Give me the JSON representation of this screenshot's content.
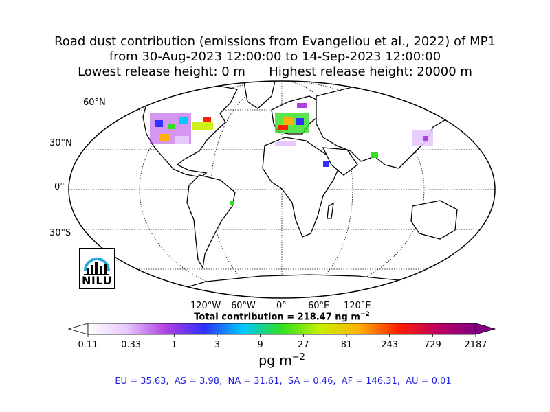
{
  "title": {
    "line1": "Road dust contribution (emissions from Evangeliou et al., 2022) of MP1",
    "line2": "from 30-Aug-2023 12:00:00 to 14-Sep-2023 12:00:00",
    "line3": "Lowest release height: 0 m      Highest release height: 20000 m"
  },
  "map": {
    "lat_labels": [
      "60°N",
      "30°N",
      "0°",
      "30°S"
    ],
    "lon_labels": [
      "120°W",
      "60°W",
      "0°",
      "60°E",
      "120°E"
    ],
    "land_color": "#ffffff",
    "coast_color": "#000000"
  },
  "total": "Total contribution = 218.47 ng m",
  "total_exp": "−2",
  "colorbar": {
    "ticks": [
      "0.11",
      "0.33",
      "1",
      "3",
      "9",
      "27",
      "81",
      "243",
      "729",
      "2187"
    ],
    "unit": "pg m",
    "unit_exp": "−2",
    "colors": [
      "#ffffff",
      "#e8c8ff",
      "#b040e0",
      "#3030ff",
      "#00c8ff",
      "#30e020",
      "#c8f000",
      "#ffb000",
      "#ff2000",
      "#c00060",
      "#800080"
    ]
  },
  "regions": "EU = 35.63,  AS = 3.98,  NA = 31.61,  SA = 0.46,  AF = 146.31,  AU = 0.01",
  "logo": {
    "text": "NILU",
    "icon": "nilu-logo-icon",
    "accent": "#29a8e0"
  }
}
